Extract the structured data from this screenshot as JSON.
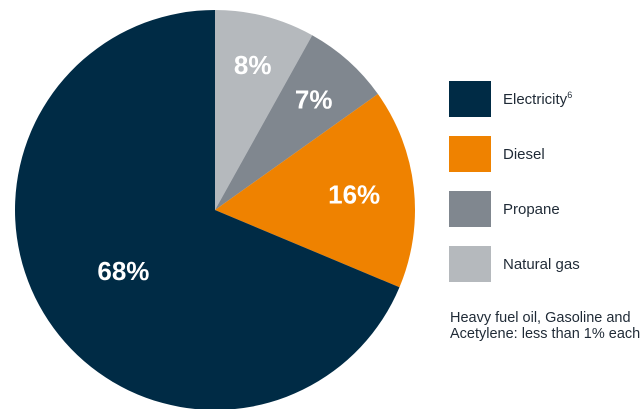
{
  "chart_data": {
    "type": "pie",
    "title": "",
    "slices": [
      {
        "label": "Natural gas",
        "value": 8,
        "display": "8%",
        "color": "#b5b9bd"
      },
      {
        "label": "Propane",
        "value": 7,
        "display": "7%",
        "color": "#80878f"
      },
      {
        "label": "Diesel",
        "value": 16,
        "display": "16%",
        "color": "#ef8200"
      },
      {
        "label": "Electricity",
        "value": 68,
        "display": "68%",
        "color": "#002b45"
      }
    ],
    "start_angle_deg": 0,
    "direction": "clockwise",
    "legend_position": "right",
    "legend": [
      {
        "label": "Electricity",
        "sup": "6",
        "color": "#002b45"
      },
      {
        "label": "Diesel",
        "sup": "",
        "color": "#ef8200"
      },
      {
        "label": "Propane",
        "sup": "",
        "color": "#80878f"
      },
      {
        "label": "Natural gas",
        "sup": "",
        "color": "#b5b9bd"
      }
    ],
    "note": "Heavy fuel oil, Gasoline and Acetylene: less than 1% each"
  }
}
